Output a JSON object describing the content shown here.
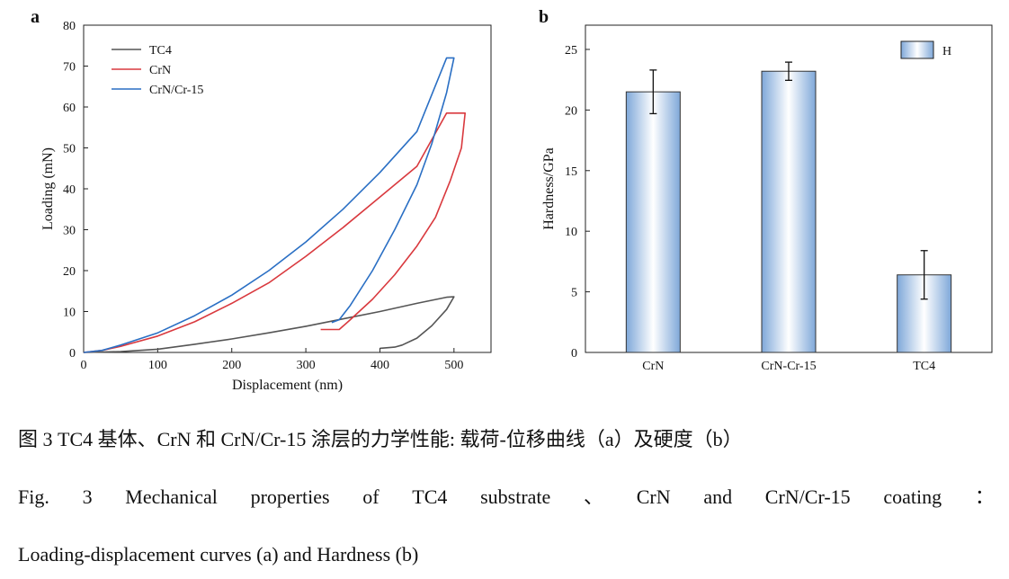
{
  "chart_data": [
    {
      "panel": "a",
      "type": "line",
      "xlabel": "Displacement (nm)",
      "ylabel": "Loading (mN)",
      "xlim": [
        0,
        550
      ],
      "ylim": [
        0,
        80
      ],
      "xticks": [
        0,
        100,
        200,
        300,
        400,
        500
      ],
      "yticks": [
        0,
        10,
        20,
        30,
        40,
        50,
        60,
        70,
        80
      ],
      "grid": false,
      "legend_position": "top-left",
      "series": [
        {
          "name": "TC4",
          "color": "#555555",
          "x": [
            0,
            50,
            100,
            150,
            200,
            250,
            300,
            350,
            400,
            450,
            490,
            500,
            490,
            470,
            450,
            430,
            420,
            400
          ],
          "y": [
            0,
            0.2,
            0.8,
            2.0,
            3.3,
            4.8,
            6.4,
            8.2,
            10.0,
            12.0,
            13.5,
            13.6,
            10.5,
            6.5,
            3.5,
            1.8,
            1.3,
            1.0
          ]
        },
        {
          "name": "CrN",
          "color": "#d9393e",
          "x": [
            0,
            25,
            50,
            100,
            150,
            200,
            250,
            300,
            350,
            400,
            450,
            490,
            515,
            510,
            495,
            475,
            450,
            420,
            390,
            360,
            345,
            320
          ],
          "y": [
            0,
            0.5,
            1.5,
            4.0,
            7.5,
            12.0,
            17.0,
            23.5,
            30.5,
            38.0,
            45.5,
            58.5,
            58.5,
            50.0,
            42.0,
            33.0,
            26.0,
            19.0,
            13.0,
            8.0,
            5.6,
            5.6
          ]
        },
        {
          "name": "CrN/Cr-15",
          "color": "#2a6fc4",
          "x": [
            0,
            25,
            50,
            100,
            150,
            200,
            250,
            300,
            350,
            400,
            450,
            490,
            500,
            490,
            470,
            450,
            420,
            390,
            360,
            345,
            335
          ],
          "y": [
            0,
            0.5,
            1.8,
            4.8,
            9.0,
            14.0,
            20.0,
            27.0,
            35.0,
            44.0,
            54.0,
            72.0,
            72.0,
            63.5,
            51.0,
            41.0,
            30.0,
            20.0,
            11.5,
            8.0,
            7.3
          ]
        }
      ]
    },
    {
      "panel": "b",
      "type": "bar",
      "ylabel": "Hardness/GPa",
      "categories": [
        "CrN",
        "CrN-Cr-15",
        "TC4"
      ],
      "ylim": [
        0,
        27
      ],
      "yticks": [
        0,
        5,
        10,
        15,
        20,
        25
      ],
      "grid": false,
      "legend_position": "top-right",
      "series": [
        {
          "name": "H",
          "values": [
            21.5,
            23.2,
            6.4
          ],
          "error": [
            1.8,
            0.75,
            2.0
          ]
        }
      ],
      "bar_color": "#7fa8d9"
    }
  ],
  "captions": {
    "chinese": "图 3 TC4 基体、CrN 和 CrN/Cr-15 涂层的力学性能: 载荷-位移曲线（a）及硬度（b）",
    "english_line1_words": [
      "Fig.",
      "3",
      "Mechanical",
      "properties",
      "of",
      "TC4",
      "substrate",
      "、",
      "CrN",
      "and",
      "CrN/Cr-15",
      "coating",
      "："
    ],
    "english_line2": "Loading-displacement curves (a) and Hardness (b)"
  }
}
